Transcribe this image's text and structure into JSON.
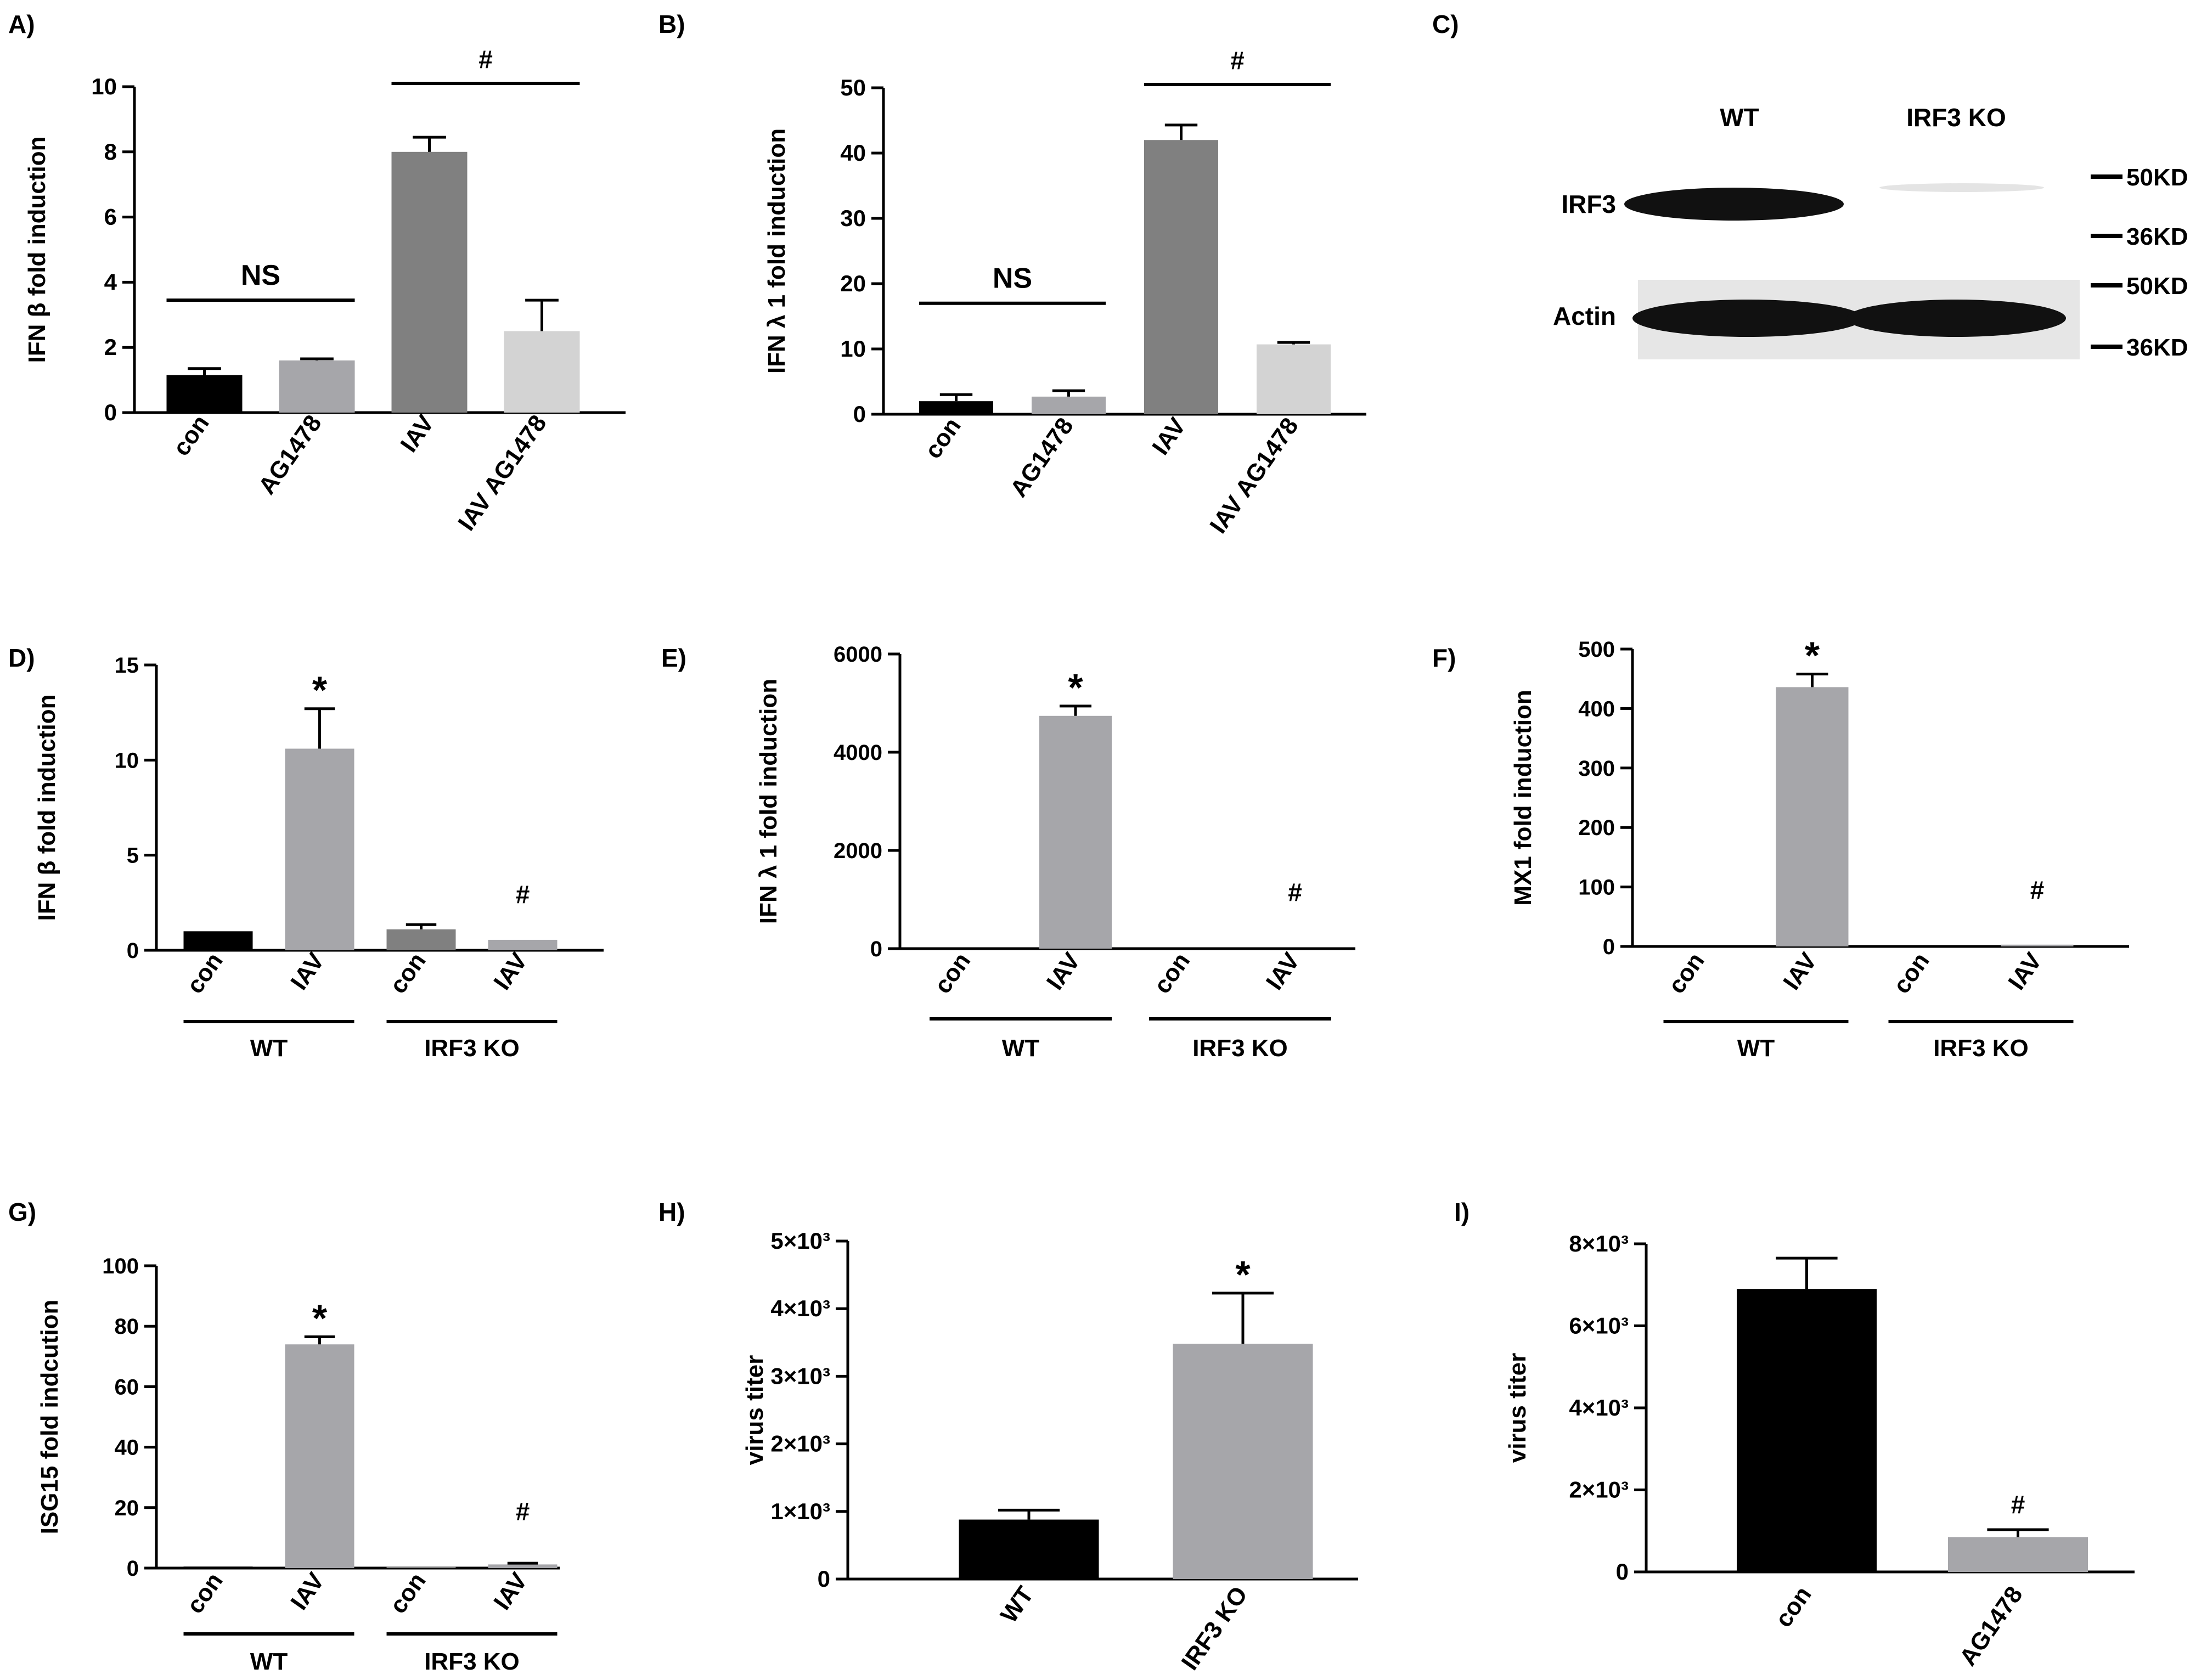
{
  "colors": {
    "black": "#000000",
    "dark_gray": "#808080",
    "medium_gray": "#a6a6aa",
    "light_gray": "#d3d3d3",
    "blot_background": "#e6e6e6"
  },
  "chart_data": [
    {
      "panel": "A)",
      "type": "bar",
      "ylabel": "IFN β fold induction",
      "ylim": [
        0,
        10
      ],
      "yticks": [
        0,
        2,
        4,
        6,
        8,
        10
      ],
      "categories": [
        "con",
        "AG1478",
        "IAV",
        "IAV AG1478"
      ],
      "values": [
        1.15,
        1.6,
        8.0,
        2.5
      ],
      "errors": [
        0.2,
        0.05,
        0.45,
        0.95
      ],
      "bar_colors": [
        "black",
        "medium_gray",
        "dark_gray",
        "light_gray"
      ],
      "brackets": [
        {
          "from": 0,
          "to": 1,
          "label": "NS",
          "y": 3.45
        },
        {
          "from": 2,
          "to": 3,
          "label": "#",
          "y": 10.1
        }
      ]
    },
    {
      "panel": "B)",
      "type": "bar",
      "ylabel": "IFN λ 1 fold induction",
      "ylim": [
        0,
        50
      ],
      "yticks": [
        0,
        10,
        20,
        30,
        40,
        50
      ],
      "categories": [
        "con",
        "AG1478",
        "IAV",
        "IAV AG1478"
      ],
      "values": [
        2.0,
        2.7,
        42.0,
        10.7
      ],
      "errors": [
        1.0,
        0.9,
        2.3,
        0.3
      ],
      "bar_colors": [
        "black",
        "medium_gray",
        "dark_gray",
        "light_gray"
      ],
      "brackets": [
        {
          "from": 0,
          "to": 1,
          "label": "NS",
          "y": 17.0
        },
        {
          "from": 2,
          "to": 3,
          "label": "#",
          "y": 50.5
        }
      ]
    },
    {
      "panel": "D)",
      "type": "bar",
      "ylabel": "IFN β fold induction",
      "ylim": [
        0,
        15
      ],
      "yticks": [
        0,
        5,
        10,
        15
      ],
      "categories": [
        "con",
        "IAV",
        "con",
        "IAV"
      ],
      "groups": [
        "WT",
        "IRF3 KO"
      ],
      "values": [
        1.0,
        10.6,
        1.1,
        0.55
      ],
      "errors": [
        0,
        2.1,
        0.25,
        0
      ],
      "bar_colors": [
        "black",
        "medium_gray",
        "dark_gray",
        "medium_gray"
      ],
      "markers": [
        "",
        "*",
        "",
        "#"
      ]
    },
    {
      "panel": "E)",
      "type": "bar",
      "ylabel": "IFN λ 1 fold induction",
      "ylim": [
        0,
        6000
      ],
      "yticks": [
        0,
        2000,
        4000,
        6000
      ],
      "categories": [
        "con",
        "IAV",
        "con",
        "IAV"
      ],
      "groups": [
        "WT",
        "IRF3 KO"
      ],
      "values": [
        0,
        4740,
        0,
        0
      ],
      "errors": [
        0,
        200,
        0,
        0
      ],
      "bar_colors": [
        "black",
        "medium_gray",
        "dark_gray",
        "medium_gray"
      ],
      "markers": [
        "",
        "*",
        "",
        "#"
      ]
    },
    {
      "panel": "F)",
      "type": "bar",
      "ylabel": "MX1 fold induction",
      "ylim": [
        0,
        500
      ],
      "yticks": [
        0,
        100,
        200,
        300,
        400,
        500
      ],
      "categories": [
        "con",
        "IAV",
        "con",
        "IAV"
      ],
      "groups": [
        "WT",
        "IRF3 KO"
      ],
      "values": [
        0,
        436,
        0,
        3
      ],
      "errors": [
        0,
        22,
        0,
        0
      ],
      "bar_colors": [
        "black",
        "medium_gray",
        "dark_gray",
        "medium_gray"
      ],
      "markers": [
        "",
        "*",
        "",
        "#"
      ]
    },
    {
      "panel": "G)",
      "type": "bar",
      "ylabel": "ISG15 fold indcution",
      "ylim": [
        0,
        100
      ],
      "yticks": [
        0,
        20,
        40,
        60,
        80,
        100
      ],
      "categories": [
        "con",
        "IAV",
        "con",
        "IAV"
      ],
      "groups": [
        "WT",
        "IRF3 KO"
      ],
      "values": [
        0.5,
        74,
        0.4,
        1.2
      ],
      "errors": [
        0,
        2.5,
        0,
        0.4
      ],
      "bar_colors": [
        "black",
        "medium_gray",
        "dark_gray",
        "medium_gray"
      ],
      "markers": [
        "",
        "*",
        "",
        "#"
      ]
    },
    {
      "panel": "H)",
      "type": "bar",
      "ylabel": "virus titer",
      "ylim": [
        0,
        5000
      ],
      "yticks": [
        0,
        1000,
        2000,
        3000,
        4000,
        5000
      ],
      "ytick_labels": [
        "0",
        "1×10³",
        "2×10³",
        "3×10³",
        "4×10³",
        "5×10³"
      ],
      "categories": [
        "WT",
        "IRF3 KO"
      ],
      "values": [
        880,
        3480
      ],
      "errors": [
        140,
        750
      ],
      "bar_colors": [
        "black",
        "medium_gray"
      ],
      "markers": [
        "",
        "*"
      ]
    },
    {
      "panel": "I)",
      "type": "bar",
      "ylabel": "virus titer",
      "ylim": [
        0,
        8000
      ],
      "yticks": [
        0,
        2000,
        4000,
        6000,
        8000
      ],
      "ytick_labels": [
        "0",
        "2×10³",
        "4×10³",
        "6×10³",
        "8×10³"
      ],
      "categories": [
        "con",
        "AG1478"
      ],
      "values": [
        6900,
        850
      ],
      "errors": [
        750,
        180
      ],
      "bar_colors": [
        "black",
        "medium_gray"
      ],
      "markers": [
        "",
        "#"
      ]
    }
  ],
  "western_blot": {
    "panel": "C)",
    "lanes": [
      "WT",
      "IRF3 KO"
    ],
    "rows": [
      "IRF3",
      "Actin"
    ],
    "markers": [
      "50KD",
      "36KD",
      "50KD",
      "36KD"
    ]
  }
}
